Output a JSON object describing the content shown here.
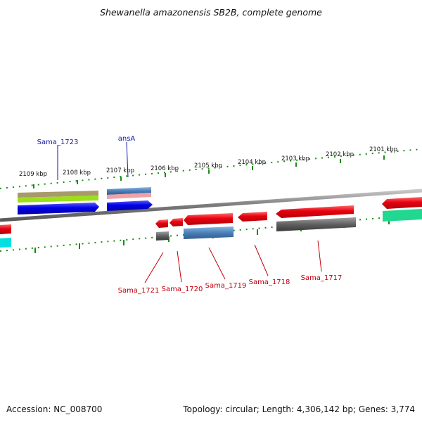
{
  "title": "Shewanella amazonensis SB2B, complete genome",
  "footer": {
    "accession": "Accession: NC_008700",
    "summary": "Topology: circular; Length: 4,306,142 bp; Genes: 3,774"
  },
  "scale_labels": [
    "2109 kbp",
    "2108 kbp",
    "2107 kbp",
    "2106 kbp",
    "2105 kbp",
    "2104 kbp",
    "2103 kbp",
    "2102 kbp",
    "2101 kbp"
  ],
  "colors": {
    "backbone": "#8c8c8c",
    "ticks": "#1a8a1a",
    "label_red": "#c0000b",
    "label_blue": "#1515a8",
    "feature_red": "#e8000f",
    "feature_blue": "#0000e6",
    "feature_steel": "#4a7fb8",
    "feature_gray": "#606060",
    "feature_olive": "#a89a6a",
    "feature_lime": "#9be01a",
    "feature_pink": "#f0a0a8",
    "feature_cyan": "#00e0e0",
    "feature_teal": "#20d890"
  },
  "gene_labels": {
    "top": [
      "Sama_1723",
      "ansA"
    ],
    "bottom": [
      "Sama_1721",
      "Sama_1720",
      "Sama_1719",
      "Sama_1718",
      "Sama_1717"
    ]
  }
}
